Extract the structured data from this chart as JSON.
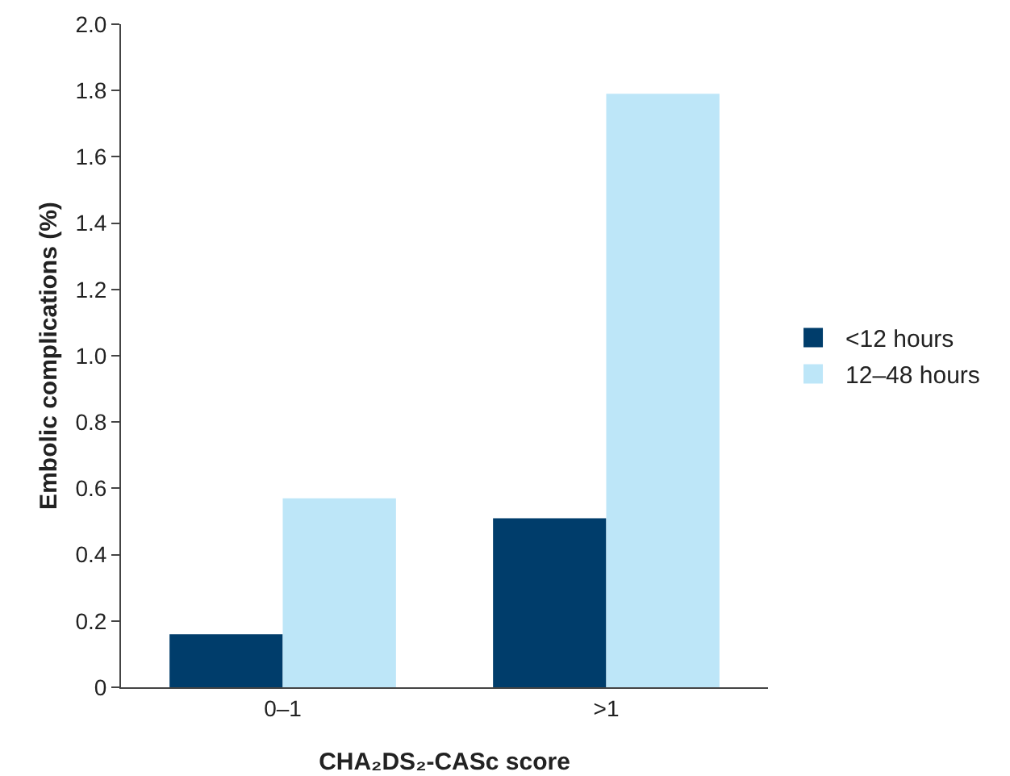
{
  "chart_data": {
    "type": "bar",
    "xlabel": "CHA₂DS₂-CASc score",
    "ylabel": "Embolic complications (%)",
    "categories": [
      "0–1",
      ">1"
    ],
    "series": [
      {
        "name": "<12 hours",
        "color": "#003d6b",
        "values": [
          0.16,
          0.51
        ]
      },
      {
        "name": "12–48 hours",
        "color": "#bde6f8",
        "values": [
          0.57,
          1.79
        ]
      }
    ],
    "ylim": [
      0,
      2.0
    ],
    "yticks": [
      0,
      0.2,
      0.4,
      0.6,
      0.8,
      {
        "value": 1,
        "label": "1.0"
      },
      1.2,
      1.4,
      1.6,
      1.8,
      {
        "value": 2,
        "label": "2.0"
      }
    ],
    "grid": false,
    "legend": "right"
  }
}
